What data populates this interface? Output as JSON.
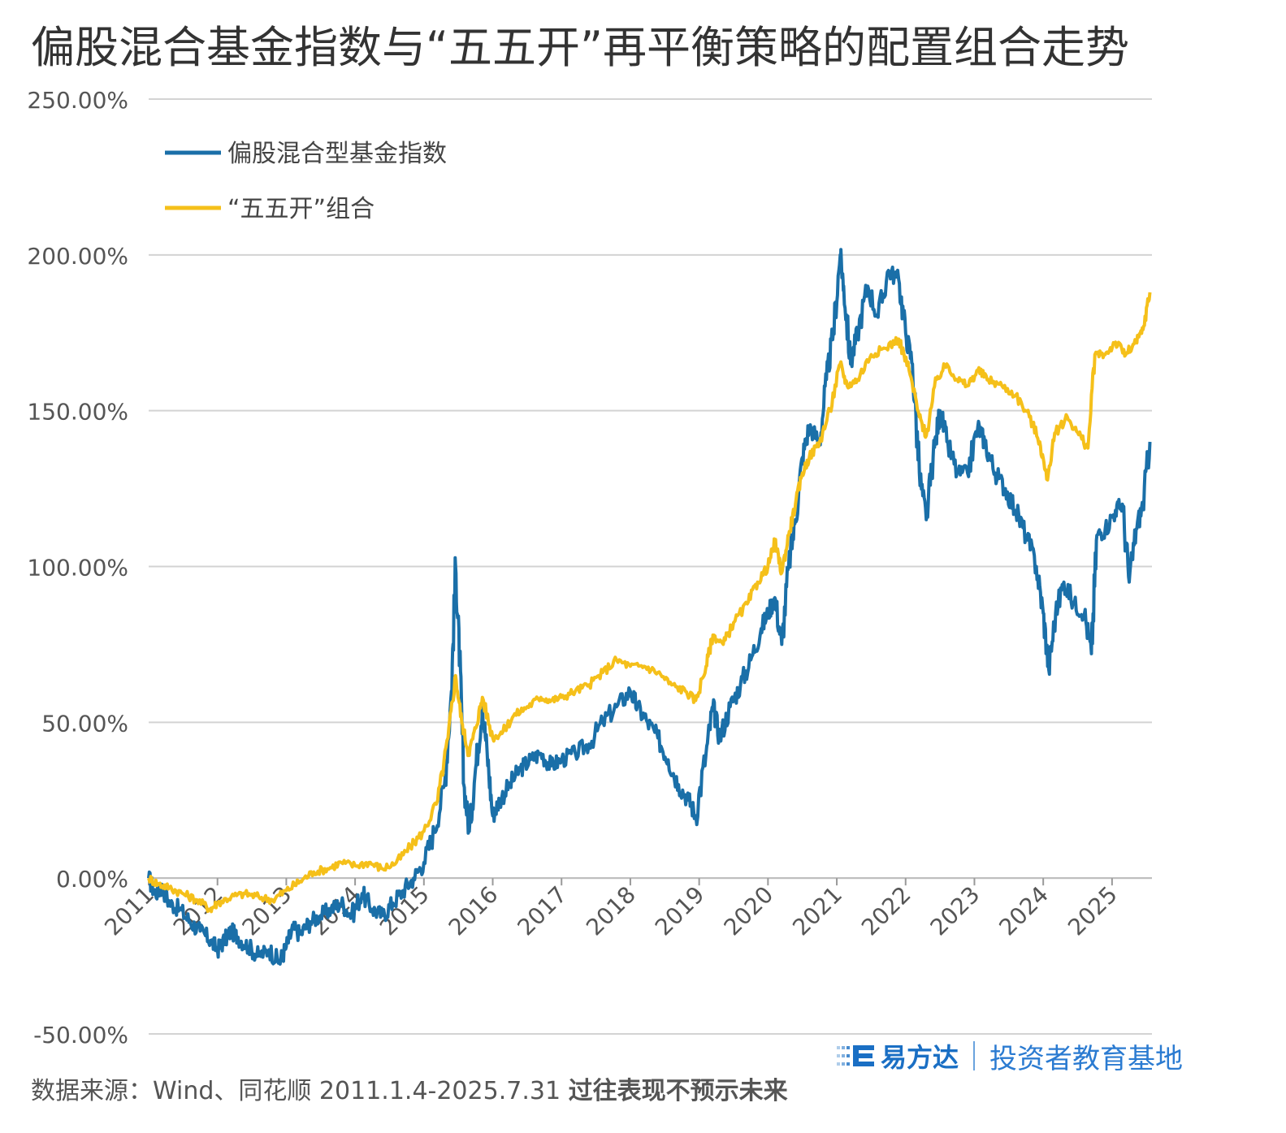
{
  "title": "偏股混合基金指数与“五五开”再平衡策略的配置组合走势",
  "footer": {
    "source": "数据来源：Wind、同花顺 2011.1.4-2025.7.31",
    "disclaimer": "过往表现不预示未来"
  },
  "brand": {
    "name": "易方达",
    "slogan": "投资者教育基地",
    "logo_icon": "efunds-logo-icon",
    "color": "#1a6fc4"
  },
  "chart_data": {
    "type": "line",
    "title": "偏股混合基金指数与“五五开”再平衡策略的配置组合走势",
    "xlabel": "",
    "ylabel": "",
    "ylim": [
      -50,
      250
    ],
    "yticks": [
      -50,
      0,
      50,
      100,
      150,
      200,
      250
    ],
    "ytick_labels": [
      "-50.00%",
      "0.00%",
      "50.00%",
      "100.00%",
      "150.00%",
      "200.00%",
      "250.00%"
    ],
    "xlim": [
      2011.0,
      2025.58
    ],
    "xticks": [
      2011,
      2012,
      2013,
      2014,
      2015,
      2016,
      2017,
      2018,
      2019,
      2020,
      2021,
      2022,
      2023,
      2024,
      2025
    ],
    "xtick_labels": [
      "2011",
      "2012",
      "2013",
      "2014",
      "2015",
      "2016",
      "2017",
      "2018",
      "2019",
      "2020",
      "2021",
      "2022",
      "2023",
      "2024",
      "2025"
    ],
    "grid": "horizontal",
    "legend_position": "top-left",
    "series": [
      {
        "name": "偏股混合型基金指数",
        "color": "#1a6fa8",
        "points": [
          [
            2011.0,
            0
          ],
          [
            2011.1,
            -5
          ],
          [
            2011.2,
            -3
          ],
          [
            2011.3,
            -8
          ],
          [
            2011.45,
            -10
          ],
          [
            2011.6,
            -14
          ],
          [
            2011.75,
            -17
          ],
          [
            2011.9,
            -20
          ],
          [
            2012.0,
            -23
          ],
          [
            2012.1,
            -20
          ],
          [
            2012.2,
            -17
          ],
          [
            2012.3,
            -19
          ],
          [
            2012.45,
            -22
          ],
          [
            2012.6,
            -25
          ],
          [
            2012.75,
            -23
          ],
          [
            2012.9,
            -27
          ],
          [
            2013.0,
            -22
          ],
          [
            2013.1,
            -16
          ],
          [
            2013.2,
            -18
          ],
          [
            2013.35,
            -14
          ],
          [
            2013.5,
            -12
          ],
          [
            2013.65,
            -10
          ],
          [
            2013.8,
            -8
          ],
          [
            2013.95,
            -12
          ],
          [
            2014.1,
            -5
          ],
          [
            2014.25,
            -10
          ],
          [
            2014.4,
            -12
          ],
          [
            2014.55,
            -8
          ],
          [
            2014.7,
            -4
          ],
          [
            2014.85,
            0
          ],
          [
            2015.0,
            5
          ],
          [
            2015.15,
            15
          ],
          [
            2015.3,
            30
          ],
          [
            2015.4,
            60
          ],
          [
            2015.46,
            100
          ],
          [
            2015.52,
            70
          ],
          [
            2015.58,
            30
          ],
          [
            2015.66,
            15
          ],
          [
            2015.75,
            35
          ],
          [
            2015.85,
            55
          ],
          [
            2015.92,
            40
          ],
          [
            2016.0,
            20
          ],
          [
            2016.1,
            25
          ],
          [
            2016.25,
            30
          ],
          [
            2016.4,
            35
          ],
          [
            2016.55,
            38
          ],
          [
            2016.7,
            40
          ],
          [
            2016.85,
            36
          ],
          [
            2017.0,
            38
          ],
          [
            2017.2,
            40
          ],
          [
            2017.4,
            43
          ],
          [
            2017.6,
            50
          ],
          [
            2017.8,
            55
          ],
          [
            2018.0,
            60
          ],
          [
            2018.1,
            55
          ],
          [
            2018.25,
            50
          ],
          [
            2018.4,
            45
          ],
          [
            2018.55,
            38
          ],
          [
            2018.7,
            30
          ],
          [
            2018.85,
            25
          ],
          [
            2018.95,
            20
          ],
          [
            2019.1,
            40
          ],
          [
            2019.2,
            55
          ],
          [
            2019.3,
            45
          ],
          [
            2019.45,
            55
          ],
          [
            2019.6,
            62
          ],
          [
            2019.75,
            70
          ],
          [
            2019.9,
            80
          ],
          [
            2020.0,
            85
          ],
          [
            2020.1,
            90
          ],
          [
            2020.2,
            75
          ],
          [
            2020.3,
            100
          ],
          [
            2020.4,
            115
          ],
          [
            2020.5,
            135
          ],
          [
            2020.6,
            145
          ],
          [
            2020.75,
            140
          ],
          [
            2020.85,
            160
          ],
          [
            2020.95,
            175
          ],
          [
            2021.05,
            200
          ],
          [
            2021.1,
            190
          ],
          [
            2021.2,
            165
          ],
          [
            2021.3,
            175
          ],
          [
            2021.45,
            190
          ],
          [
            2021.6,
            180
          ],
          [
            2021.75,
            195
          ],
          [
            2021.9,
            192
          ],
          [
            2022.0,
            175
          ],
          [
            2022.1,
            165
          ],
          [
            2022.2,
            130
          ],
          [
            2022.3,
            115
          ],
          [
            2022.4,
            135
          ],
          [
            2022.5,
            150
          ],
          [
            2022.6,
            140
          ],
          [
            2022.75,
            130
          ],
          [
            2022.9,
            130
          ],
          [
            2023.05,
            145
          ],
          [
            2023.15,
            140
          ],
          [
            2023.3,
            130
          ],
          [
            2023.45,
            125
          ],
          [
            2023.6,
            118
          ],
          [
            2023.75,
            110
          ],
          [
            2023.9,
            100
          ],
          [
            2024.0,
            85
          ],
          [
            2024.08,
            67
          ],
          [
            2024.18,
            85
          ],
          [
            2024.3,
            95
          ],
          [
            2024.45,
            88
          ],
          [
            2024.6,
            85
          ],
          [
            2024.7,
            72
          ],
          [
            2024.78,
            110
          ],
          [
            2024.9,
            112
          ],
          [
            2025.05,
            118
          ],
          [
            2025.15,
            120
          ],
          [
            2025.25,
            95
          ],
          [
            2025.35,
            112
          ],
          [
            2025.45,
            120
          ],
          [
            2025.55,
            140
          ]
        ]
      },
      {
        "name": "“五五开”组合",
        "color": "#f5c01a",
        "points": [
          [
            2011.0,
            0
          ],
          [
            2011.15,
            -2
          ],
          [
            2011.3,
            -3
          ],
          [
            2011.5,
            -5
          ],
          [
            2011.7,
            -7
          ],
          [
            2011.9,
            -10
          ],
          [
            2012.0,
            -8
          ],
          [
            2012.2,
            -6
          ],
          [
            2012.4,
            -5
          ],
          [
            2012.6,
            -6
          ],
          [
            2012.8,
            -7
          ],
          [
            2013.0,
            -4
          ],
          [
            2013.2,
            -1
          ],
          [
            2013.4,
            2
          ],
          [
            2013.6,
            3
          ],
          [
            2013.8,
            5
          ],
          [
            2014.0,
            4
          ],
          [
            2014.2,
            5
          ],
          [
            2014.4,
            3
          ],
          [
            2014.6,
            5
          ],
          [
            2014.8,
            10
          ],
          [
            2015.0,
            15
          ],
          [
            2015.2,
            25
          ],
          [
            2015.35,
            45
          ],
          [
            2015.46,
            65
          ],
          [
            2015.55,
            50
          ],
          [
            2015.65,
            40
          ],
          [
            2015.75,
            48
          ],
          [
            2015.85,
            58
          ],
          [
            2016.0,
            45
          ],
          [
            2016.15,
            47
          ],
          [
            2016.3,
            52
          ],
          [
            2016.5,
            55
          ],
          [
            2016.7,
            58
          ],
          [
            2016.85,
            57
          ],
          [
            2017.0,
            58
          ],
          [
            2017.2,
            60
          ],
          [
            2017.4,
            62
          ],
          [
            2017.6,
            66
          ],
          [
            2017.8,
            70
          ],
          [
            2018.0,
            68
          ],
          [
            2018.2,
            68
          ],
          [
            2018.4,
            66
          ],
          [
            2018.6,
            62
          ],
          [
            2018.8,
            60
          ],
          [
            2018.95,
            57
          ],
          [
            2019.1,
            68
          ],
          [
            2019.2,
            78
          ],
          [
            2019.35,
            75
          ],
          [
            2019.5,
            82
          ],
          [
            2019.7,
            88
          ],
          [
            2019.85,
            95
          ],
          [
            2020.0,
            100
          ],
          [
            2020.1,
            108
          ],
          [
            2020.2,
            98
          ],
          [
            2020.3,
            110
          ],
          [
            2020.4,
            120
          ],
          [
            2020.5,
            130
          ],
          [
            2020.6,
            135
          ],
          [
            2020.75,
            140
          ],
          [
            2020.9,
            150
          ],
          [
            2021.05,
            165
          ],
          [
            2021.15,
            158
          ],
          [
            2021.3,
            160
          ],
          [
            2021.5,
            168
          ],
          [
            2021.7,
            170
          ],
          [
            2021.9,
            173
          ],
          [
            2022.05,
            163
          ],
          [
            2022.2,
            148
          ],
          [
            2022.3,
            142
          ],
          [
            2022.45,
            160
          ],
          [
            2022.6,
            165
          ],
          [
            2022.75,
            160
          ],
          [
            2022.9,
            158
          ],
          [
            2023.05,
            163
          ],
          [
            2023.2,
            160
          ],
          [
            2023.4,
            158
          ],
          [
            2023.6,
            155
          ],
          [
            2023.8,
            148
          ],
          [
            2023.95,
            140
          ],
          [
            2024.05,
            128
          ],
          [
            2024.18,
            143
          ],
          [
            2024.35,
            148
          ],
          [
            2024.5,
            143
          ],
          [
            2024.65,
            138
          ],
          [
            2024.75,
            168
          ],
          [
            2024.9,
            168
          ],
          [
            2025.05,
            172
          ],
          [
            2025.2,
            168
          ],
          [
            2025.35,
            172
          ],
          [
            2025.45,
            176
          ],
          [
            2025.55,
            188
          ]
        ]
      }
    ]
  }
}
